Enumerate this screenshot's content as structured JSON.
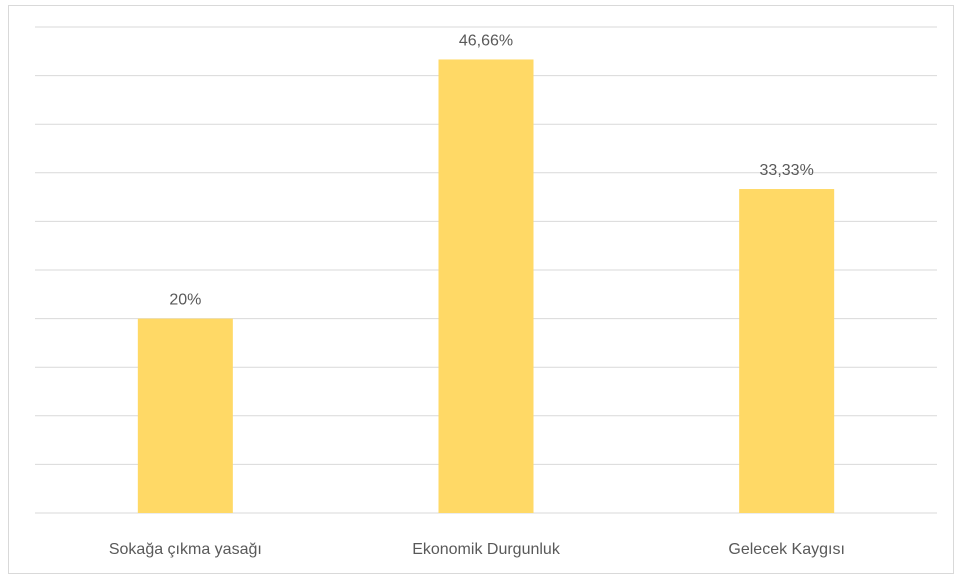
{
  "chart_data": {
    "type": "bar",
    "categories": [
      "Sokağa çıkma yasağı",
      "Ekonomik Durgunluk",
      "Gelecek Kaygısı"
    ],
    "values": [
      20,
      46.66,
      33.33
    ],
    "value_labels": [
      "20%",
      "46,66%",
      "33,33%"
    ],
    "color": "#FFD966",
    "ylim": [
      0,
      50
    ],
    "yticks": [
      0,
      5,
      10,
      15,
      20,
      25,
      30,
      35,
      40,
      45,
      50
    ],
    "grid": true
  }
}
